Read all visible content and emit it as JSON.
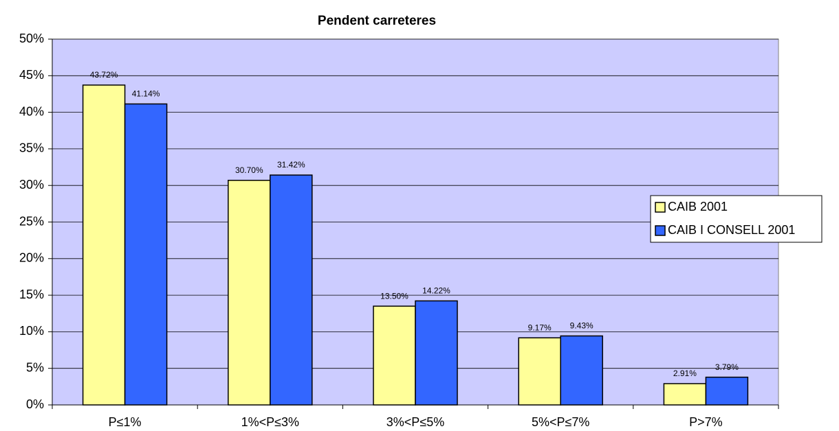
{
  "chart_data": {
    "type": "bar",
    "title": "Pendent carreteres",
    "categories": [
      "P≤1%",
      "1%<P≤3%",
      "3%<P≤5%",
      "5%<P≤7%",
      "P>7%"
    ],
    "series": [
      {
        "name": "CAIB 2001",
        "color": "#ffff99",
        "values": [
          43.72,
          30.7,
          13.5,
          9.17,
          2.91
        ],
        "value_labels": [
          "43.72%",
          "30.70%",
          "13.50%",
          "9.17%",
          "2.91%"
        ]
      },
      {
        "name": "CAIB I CONSELL 2001",
        "color": "#3366ff",
        "values": [
          41.14,
          31.42,
          14.22,
          9.43,
          3.79
        ],
        "value_labels": [
          "41.14%",
          "31.42%",
          "14.22%",
          "9.43%",
          "3.79%"
        ]
      }
    ],
    "ylim": [
      0,
      50
    ],
    "yticks": [
      {
        "value": 0,
        "label": "0%"
      },
      {
        "value": 5,
        "label": "5%"
      },
      {
        "value": 10,
        "label": "10%"
      },
      {
        "value": 15,
        "label": "15%"
      },
      {
        "value": 20,
        "label": "20%"
      },
      {
        "value": 25,
        "label": "25%"
      },
      {
        "value": 30,
        "label": "30%"
      },
      {
        "value": 35,
        "label": "35%"
      },
      {
        "value": 40,
        "label": "40%"
      },
      {
        "value": 45,
        "label": "45%"
      },
      {
        "value": 50,
        "label": "50%"
      }
    ],
    "grid": true,
    "legend": "right",
    "background": "#ccccff"
  }
}
